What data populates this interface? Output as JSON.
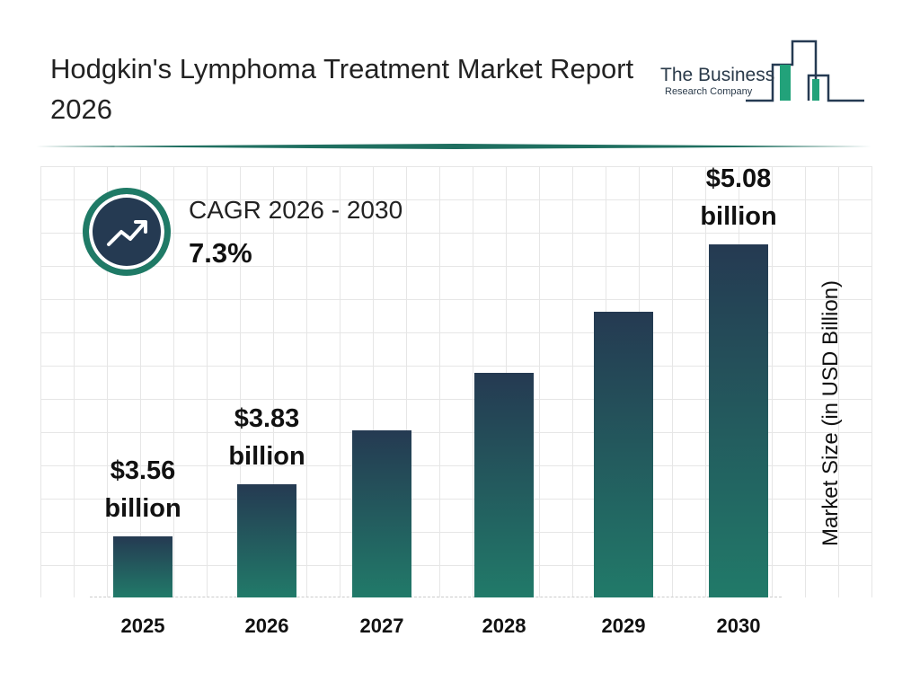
{
  "header": {
    "title": "Hodgkin's Lymphoma Treatment Market Report 2026",
    "logo_line1": "The Business",
    "logo_line2": "Research Company"
  },
  "cagr": {
    "label": "CAGR 2026 - 2030",
    "value": "7.3%",
    "icon": "trend-up-icon"
  },
  "colors": {
    "bar_top": "#253a52",
    "bar_bottom": "#217a69",
    "accent": "#1f7a66"
  },
  "chart_data": {
    "type": "bar",
    "title": "",
    "xlabel": "",
    "ylabel": "Market Size (in USD Billion)",
    "categories": [
      "2025",
      "2026",
      "2027",
      "2028",
      "2029",
      "2030"
    ],
    "values": [
      3.56,
      3.83,
      4.11,
      4.41,
      4.73,
      5.08
    ],
    "data_labels": [
      "$3.56 billion",
      "$3.83 billion",
      "",
      "",
      "",
      "$5.08 billion"
    ],
    "ylim": [
      3.24,
      5.4
    ],
    "grid": true,
    "legend": "none"
  }
}
